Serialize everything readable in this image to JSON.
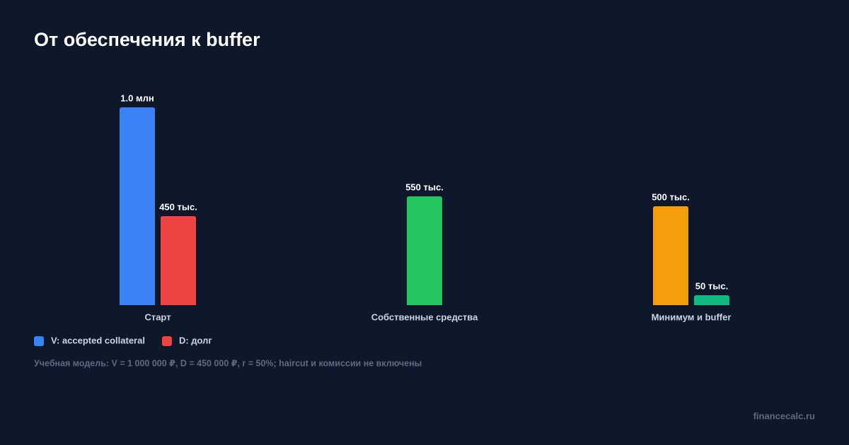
{
  "chart_data": {
    "type": "bar",
    "title": "От обеспечения к buffer",
    "categories": [
      "Старт",
      "Собственные средства",
      "Минимум и buffer"
    ],
    "series": [
      {
        "name": "V: accepted collateral",
        "color": "#3b82f6",
        "values": [
          1000000,
          null,
          null
        ],
        "value_labels": [
          "1.0 млн",
          null,
          null
        ]
      },
      {
        "name": "D: долг",
        "color": "#ef4444",
        "values": [
          450000,
          null,
          null
        ],
        "value_labels": [
          "450 тыс.",
          null,
          null
        ]
      },
      {
        "color": "#22c55e",
        "values": [
          null,
          550000,
          null
        ],
        "value_labels": [
          null,
          "550 тыс.",
          null
        ]
      },
      {
        "color": "#f59e0b",
        "values": [
          null,
          null,
          500000
        ],
        "value_labels": [
          null,
          null,
          "500 тыс."
        ]
      },
      {
        "color": "#10b981",
        "values": [
          null,
          null,
          50000
        ],
        "value_labels": [
          null,
          null,
          "50 тыс."
        ]
      }
    ],
    "ylim": [
      0,
      1000000
    ],
    "note": "Учебная модель: V = 1 000 000 ₽, D = 450 000 ₽, r = 50%; haircut и комиссии не включены",
    "watermark": "financecalc.ru"
  }
}
